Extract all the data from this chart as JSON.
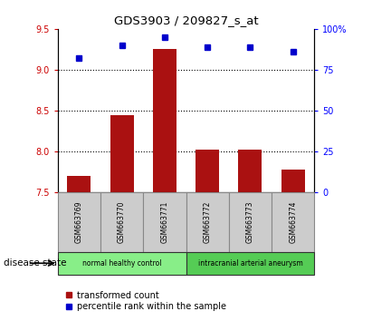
{
  "title": "GDS3903 / 209827_s_at",
  "samples": [
    "GSM663769",
    "GSM663770",
    "GSM663771",
    "GSM663772",
    "GSM663773",
    "GSM663774"
  ],
  "transformed_count": [
    7.7,
    8.45,
    9.25,
    8.02,
    8.02,
    7.78
  ],
  "percentile_rank": [
    82,
    90,
    95,
    89,
    89,
    86
  ],
  "ylim_left": [
    7.5,
    9.5
  ],
  "ylim_right": [
    0,
    100
  ],
  "yticks_left": [
    7.5,
    8.0,
    8.5,
    9.0,
    9.5
  ],
  "yticks_right": [
    0,
    25,
    50,
    75,
    100
  ],
  "ytick_labels_right": [
    "0",
    "25",
    "50",
    "75",
    "100%"
  ],
  "bar_color": "#aa1111",
  "dot_color": "#0000cc",
  "grid_yticks": [
    8.0,
    8.5,
    9.0
  ],
  "groups": [
    {
      "label": "normal healthy control",
      "indices": [
        0,
        1,
        2
      ],
      "color": "#88ee88"
    },
    {
      "label": "intracranial arterial aneurysm",
      "indices": [
        3,
        4,
        5
      ],
      "color": "#55cc55"
    }
  ],
  "legend_bar_label": "transformed count",
  "legend_dot_label": "percentile rank within the sample",
  "disease_state_label": "disease state",
  "bar_width": 0.55,
  "sample_box_color": "#cccccc",
  "sample_box_edge": "#888888"
}
